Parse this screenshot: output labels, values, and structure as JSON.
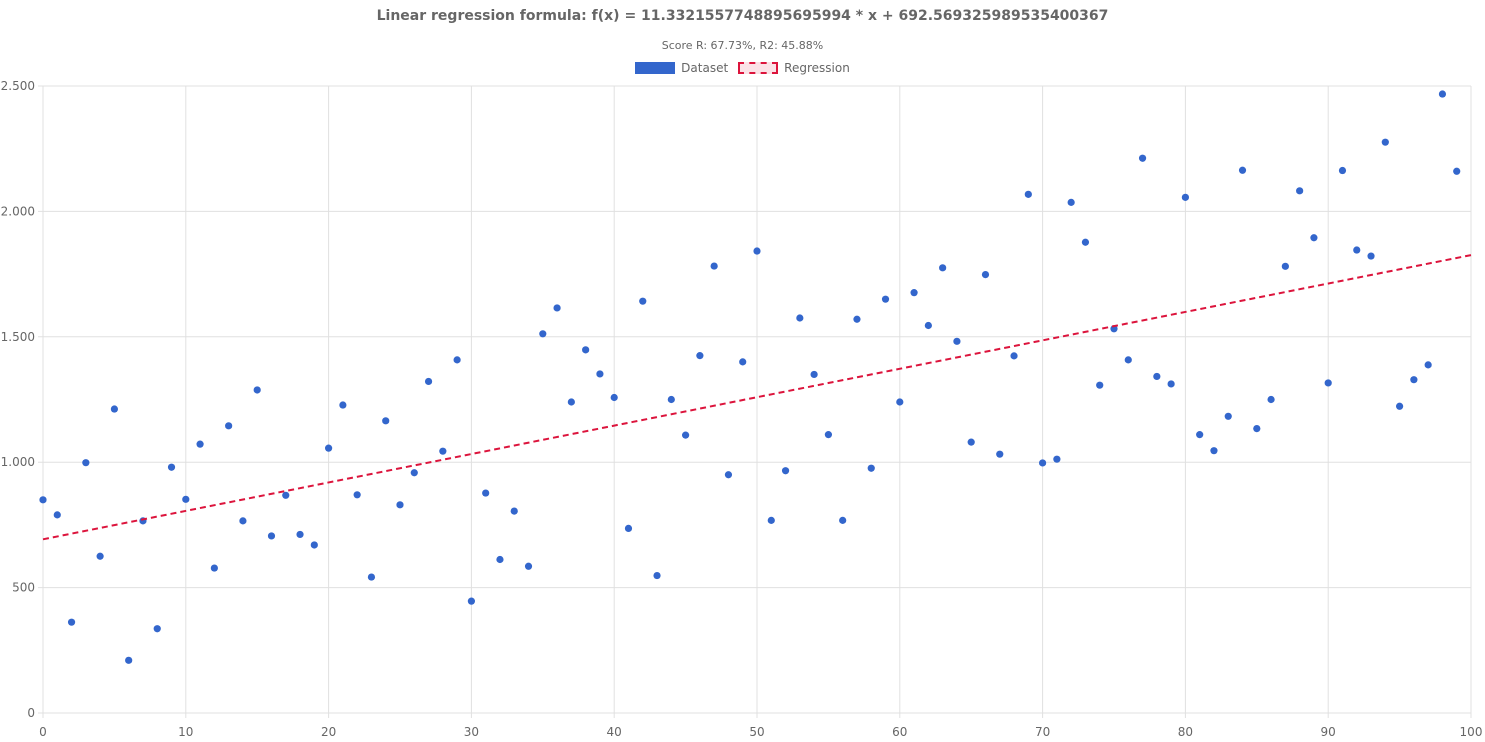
{
  "chart_data": {
    "type": "scatter",
    "title": "Linear regression formula: f(x) = 11.3321557748895695994 * x + 692.569325989535400367",
    "subtitle": "Score R: 67.73%, R2: 45.88%",
    "xlim": [
      0,
      100
    ],
    "ylim": [
      0,
      2500
    ],
    "x_ticks": [
      0,
      10,
      20,
      30,
      40,
      50,
      60,
      70,
      80,
      90,
      100
    ],
    "y_ticks": [
      0,
      500,
      1000,
      1500,
      2000,
      2500
    ],
    "x_tick_labels": [
      "0",
      "10",
      "20",
      "30",
      "40",
      "50",
      "60",
      "70",
      "80",
      "90",
      "100"
    ],
    "y_tick_labels": [
      "0",
      "500",
      "1.000",
      "1.500",
      "2.000",
      "2.500"
    ],
    "grid": true,
    "legend_position": "top-center",
    "series": [
      {
        "name": "Dataset",
        "type": "scatter",
        "color": "#3366cc",
        "x": [
          0,
          1,
          2,
          3,
          4,
          5,
          6,
          7,
          8,
          9,
          10,
          11,
          12,
          13,
          14,
          15,
          16,
          17,
          18,
          19,
          20,
          21,
          22,
          23,
          24,
          25,
          26,
          27,
          28,
          29,
          30,
          31,
          32,
          33,
          34,
          35,
          36,
          37,
          38,
          39,
          40,
          41,
          42,
          43,
          44,
          45,
          46,
          47,
          48,
          49,
          50,
          51,
          52,
          53,
          54,
          55,
          56,
          57,
          58,
          59,
          60,
          61,
          62,
          63,
          64,
          65,
          66,
          67,
          68,
          69,
          70,
          71,
          72,
          73,
          74,
          75,
          76,
          77,
          78,
          79,
          80,
          81,
          82,
          83,
          84,
          85,
          86,
          87,
          88,
          89,
          90,
          91,
          92,
          93,
          94,
          95,
          96,
          97,
          98,
          99
        ],
        "y": [
          850,
          790,
          362,
          998,
          625,
          1212,
          210,
          766,
          336,
          980,
          852,
          1072,
          578,
          1145,
          766,
          1288,
          706,
          868,
          712,
          670,
          1056,
          1228,
          870,
          542,
          1165,
          830,
          958,
          1322,
          1044,
          1408,
          446,
          877,
          612,
          805,
          585,
          1512,
          1615,
          1240,
          1448,
          1352,
          1258,
          736,
          1642,
          548,
          1250,
          1108,
          1425,
          1782,
          950,
          1400,
          1842,
          768,
          966,
          1575,
          1350,
          1110,
          768,
          1570,
          976,
          1650,
          1240,
          1676,
          1545,
          1775,
          1482,
          1080,
          1748,
          1032,
          1424,
          2068,
          997,
          1012,
          2036,
          1877,
          1307,
          1532,
          1408,
          2212,
          1342,
          1312,
          2056,
          1110,
          1046,
          1183,
          2164,
          1134,
          1250,
          1781,
          2082,
          1895,
          1316,
          2163,
          1846,
          1822,
          2276,
          1223,
          1329,
          1388,
          2468,
          2160
        ]
      },
      {
        "name": "Regression",
        "type": "line",
        "style": "dashed",
        "color": "#dc143c",
        "slope": 11.33215577488957,
        "intercept": 692.5693259895354,
        "x": [
          0,
          100
        ],
        "y": [
          692.57,
          1825.78
        ]
      }
    ]
  }
}
